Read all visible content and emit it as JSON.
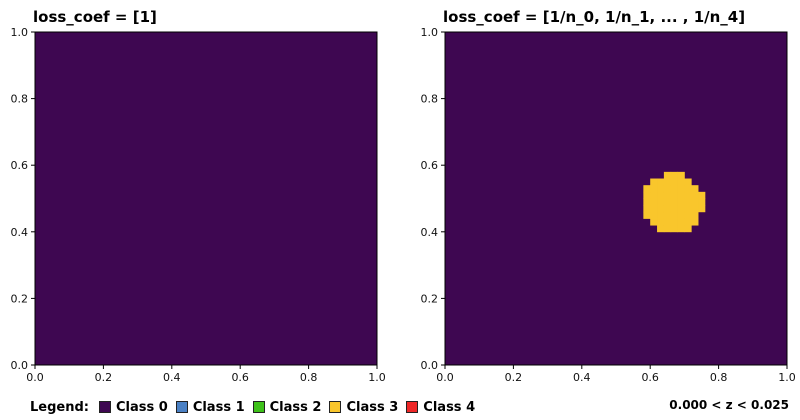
{
  "chart_data": [
    {
      "type": "heatmap",
      "title": "loss_coef = [1]",
      "xlim": [
        0,
        1
      ],
      "ylim": [
        0,
        1
      ],
      "xticks": [
        "0.0",
        "0.2",
        "0.4",
        "0.6",
        "0.8",
        "1.0"
      ],
      "yticks": [
        "0.0",
        "0.2",
        "0.4",
        "0.6",
        "0.8",
        "1.0"
      ],
      "background_class": 0,
      "regions": []
    },
    {
      "type": "heatmap",
      "title": "loss_coef = [1/n_0, 1/n_1, ... , 1/n_4]",
      "xlim": [
        0,
        1
      ],
      "ylim": [
        0,
        1
      ],
      "xticks": [
        "0.0",
        "0.2",
        "0.4",
        "0.6",
        "0.8",
        "1.0"
      ],
      "yticks": [
        "0.0",
        "0.2",
        "0.4",
        "0.6",
        "0.8",
        "1.0"
      ],
      "background_class": 0,
      "regions": [
        {
          "class": 3,
          "shape": "disc",
          "center": [
            0.665,
            0.485
          ],
          "radius": 0.09
        }
      ]
    }
  ],
  "legend": {
    "title": "Legend:",
    "items": [
      {
        "label": "Class 0",
        "color": "#3e0751"
      },
      {
        "label": "Class 1",
        "color": "#4a80c4"
      },
      {
        "label": "Class 2",
        "color": "#3ec11a"
      },
      {
        "label": "Class 3",
        "color": "#f9c62c"
      },
      {
        "label": "Class 4",
        "color": "#ee2727"
      }
    ]
  },
  "z_range_label": "0.000 < z < 0.025"
}
